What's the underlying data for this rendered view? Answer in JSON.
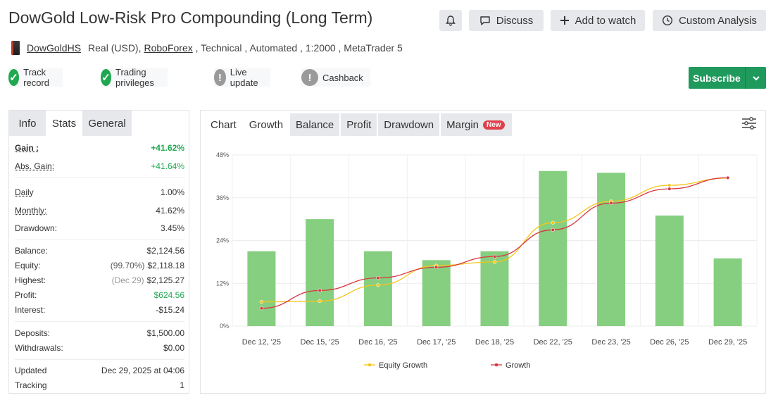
{
  "header": {
    "title": "DowGold Low-Risk Pro Compounding (Long Term)",
    "discuss_label": "Discuss",
    "watch_label": "Add to watch",
    "analysis_label": "Custom Analysis"
  },
  "account": {
    "owner": "DowGoldHS",
    "currency": "Real (USD),",
    "broker": "RoboForex",
    "rest": " , Technical , Automated , 1:2000 , MetaTrader 5"
  },
  "badges": [
    {
      "label": "Track record",
      "status": "ok"
    },
    {
      "label": "Trading privileges",
      "status": "ok"
    },
    {
      "label": "Live update",
      "status": "na"
    },
    {
      "label": "Cashback",
      "status": "na"
    }
  ],
  "subscribe": {
    "label": "Subscribe"
  },
  "left_tabs": {
    "info": "Info",
    "stats": "Stats",
    "general": "General"
  },
  "stats": {
    "gain": {
      "label": "Gain :",
      "value": "+41.62%"
    },
    "abs_gain": {
      "label": "Abs. Gain:",
      "value": "+41.64%"
    },
    "daily": {
      "label": "Daily",
      "value": "1.00%"
    },
    "monthly": {
      "label": "Monthly:",
      "value": "41.62%"
    },
    "drawdown": {
      "label": "Drawdown:",
      "value": "3.45%"
    },
    "balance": {
      "label": "Balance:",
      "value": "$2,124.56"
    },
    "equity": {
      "label": "Equity:",
      "note": "(99.70%)",
      "value": "$2,118.18"
    },
    "highest": {
      "label": "Highest:",
      "note": "(Dec 29)",
      "value": "$2,125.27"
    },
    "profit": {
      "label": "Profit:",
      "value": "$624.56"
    },
    "interest": {
      "label": "Interest:",
      "value": "-$15.24"
    },
    "deposits": {
      "label": "Deposits:",
      "value": "$1,500.00"
    },
    "withdrawals": {
      "label": "Withdrawals:",
      "value": "$0.00"
    },
    "updated": {
      "label": "Updated",
      "value": "Dec 29, 2025 at 04:06"
    },
    "tracking": {
      "label": "Tracking",
      "value": "1"
    }
  },
  "chart_tabs": {
    "chart": "Chart",
    "growth": "Growth",
    "balance": "Balance",
    "profit": "Profit",
    "drawdown": "Drawdown",
    "margin": "Margin",
    "new_badge": "New"
  },
  "colors": {
    "bar": "#86cf80",
    "equity_line": "#f5c518",
    "growth_line": "#d9363e",
    "accent_green": "#1fa84f"
  },
  "chart_data": {
    "type": "bar",
    "categories": [
      "Dec 12, '25",
      "Dec 15, '25",
      "Dec 16, '25",
      "Dec 17, '25",
      "Dec 18, '25",
      "Dec 22, '25",
      "Dec 23, '25",
      "Dec 26, '25",
      "Dec 29, '25"
    ],
    "bar_values": [
      21,
      30,
      21,
      18.5,
      21,
      43.5,
      43,
      31,
      19
    ],
    "series": [
      {
        "name": "Equity Growth",
        "type": "line",
        "values": [
          6.8,
          7,
          11.5,
          17,
          18,
          29,
          35,
          39.5,
          41.5
        ]
      },
      {
        "name": "Growth",
        "type": "line",
        "values": [
          5,
          10,
          13.5,
          16.5,
          19.5,
          27,
          34.5,
          38.5,
          41.6
        ]
      }
    ],
    "yticks": [
      "0%",
      "12%",
      "24%",
      "36%",
      "48%"
    ],
    "ylim": [
      0,
      48
    ],
    "grid": true,
    "legend_position": "bottom"
  }
}
